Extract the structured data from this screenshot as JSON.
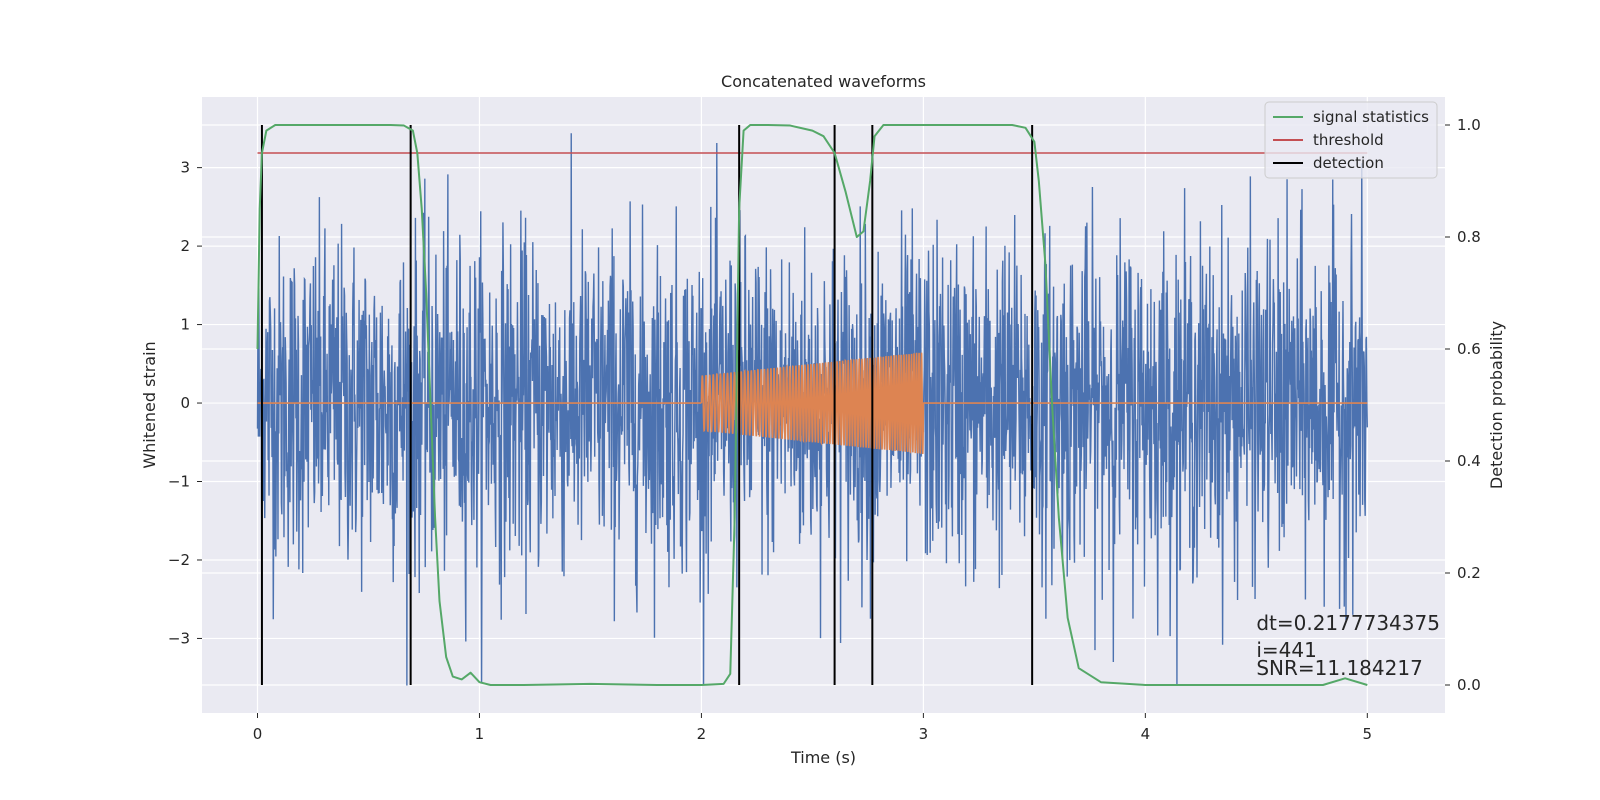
{
  "chart_data": {
    "type": "line",
    "title": "Concatenated waveforms",
    "xlabel": "Time (s)",
    "ylabel": "Whitened strain",
    "y2label": "Detection probability",
    "xlim": [
      -0.25,
      5.35
    ],
    "ylim": [
      -3.95,
      3.9
    ],
    "y2lim": [
      -0.05,
      1.05
    ],
    "x_ticks": [
      0,
      1,
      2,
      3,
      4,
      5
    ],
    "y_ticks": [
      -3,
      -2,
      -1,
      0,
      1,
      2,
      3
    ],
    "y2_ticks": [
      0.0,
      0.2,
      0.4,
      0.6,
      0.8,
      1.0
    ],
    "grid": true,
    "legend_position": "top-right",
    "colors": {
      "strain": "#4c72b0",
      "injection": "#dd8452",
      "statistics": "#55a868",
      "threshold": "#c44e52",
      "detection": "#000000",
      "background": "#eaeaf2"
    },
    "series": [
      {
        "name": "",
        "key": "strain",
        "axis": "left",
        "description_type": "noise",
        "x_range": [
          0,
          5
        ],
        "amplitude_std": 1.0,
        "peak_max": 3.5,
        "peak_min": -3.6
      },
      {
        "name": "",
        "key": "injection",
        "axis": "left",
        "x_range": [
          0,
          5
        ],
        "chirp_start": 2.0,
        "chirp_end": 3.0,
        "amplitude_start": 0.35,
        "amplitude_end": 0.65,
        "cycles": 60
      },
      {
        "name": "signal statistics",
        "key": "statistics",
        "axis": "right",
        "x": [
          0.0,
          0.01,
          0.02,
          0.04,
          0.08,
          0.2,
          0.4,
          0.6,
          0.66,
          0.7,
          0.72,
          0.74,
          0.76,
          0.78,
          0.8,
          0.82,
          0.85,
          0.88,
          0.92,
          0.96,
          1.0,
          1.05,
          1.2,
          1.5,
          1.8,
          2.0,
          2.1,
          2.13,
          2.15,
          2.17,
          2.19,
          2.22,
          2.3,
          2.4,
          2.5,
          2.55,
          2.6,
          2.65,
          2.7,
          2.73,
          2.76,
          2.78,
          2.82,
          2.9,
          3.0,
          3.2,
          3.4,
          3.46,
          3.5,
          3.52,
          3.55,
          3.58,
          3.61,
          3.65,
          3.7,
          3.8,
          4.0,
          4.5,
          4.8,
          4.9,
          5.0
        ],
        "values": [
          0.6,
          0.85,
          0.95,
          0.99,
          1.0,
          1.0,
          1.0,
          1.0,
          0.999,
          0.99,
          0.95,
          0.85,
          0.7,
          0.5,
          0.3,
          0.15,
          0.05,
          0.015,
          0.01,
          0.022,
          0.005,
          0.0,
          0.0,
          0.002,
          0.0,
          0.0,
          0.002,
          0.02,
          0.3,
          0.85,
          0.99,
          1.0,
          1.0,
          0.999,
          0.99,
          0.98,
          0.95,
          0.88,
          0.8,
          0.81,
          0.9,
          0.98,
          1.0,
          1.0,
          1.0,
          1.0,
          1.0,
          0.995,
          0.97,
          0.9,
          0.75,
          0.5,
          0.3,
          0.12,
          0.03,
          0.005,
          0.0,
          0.0,
          0.0,
          0.012,
          0.0
        ]
      },
      {
        "name": "threshold",
        "key": "threshold",
        "axis": "right",
        "x": [
          0,
          5
        ],
        "values": [
          0.95,
          0.95
        ]
      },
      {
        "name": "detection",
        "key": "detection",
        "axis": "right",
        "x": [
          0.02,
          0.69,
          2.17,
          2.6,
          2.77,
          3.49
        ],
        "values": [
          1,
          1,
          1,
          1,
          1,
          1
        ],
        "range": [
          0.0,
          1.0
        ]
      }
    ],
    "annotations": [
      {
        "text": "dt=0.2177734375",
        "x": 4.5,
        "y2": 0.1
      },
      {
        "text": " i=441",
        "x": 4.5,
        "y2": 0.05
      },
      {
        "text": "SNR=11.184217",
        "x": 4.5,
        "y2": 0.02
      }
    ]
  }
}
